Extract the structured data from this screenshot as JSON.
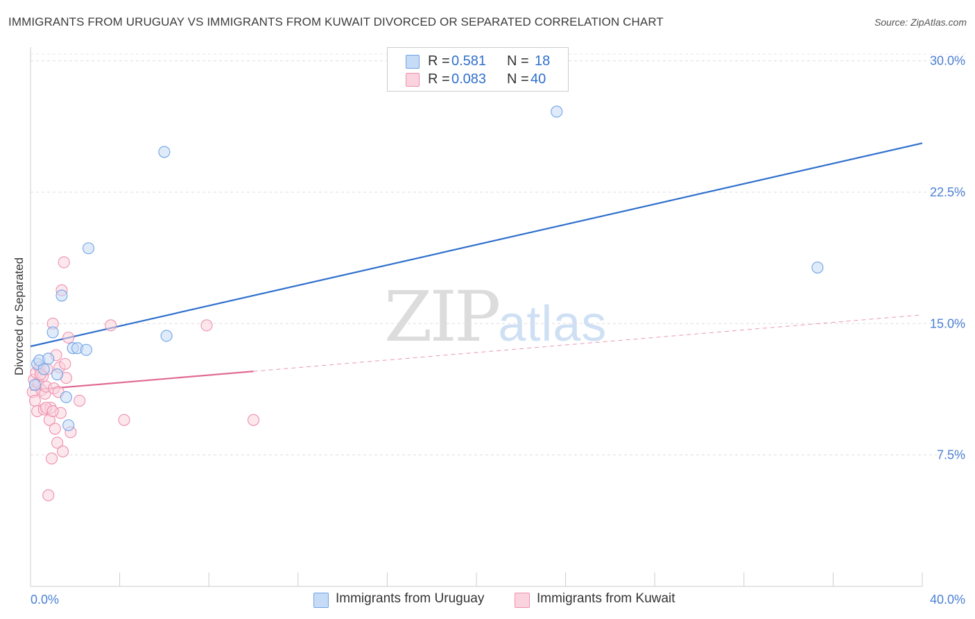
{
  "title": "IMMIGRANTS FROM URUGUAY VS IMMIGRANTS FROM KUWAIT DIVORCED OR SEPARATED CORRELATION CHART",
  "source": "Source: ZipAtlas.com",
  "watermark": {
    "zip": "ZIP",
    "atlas": "atlas"
  },
  "legend": {
    "uruguay": {
      "r_label": "R =",
      "r_value": "0.581",
      "n_label": "N =",
      "n_value": "18",
      "color": "#9dc3f0"
    },
    "kuwait": {
      "r_label": "R =",
      "r_value": "0.083",
      "n_label": "N =",
      "n_value": "40",
      "color": "#f5b4c8"
    }
  },
  "bottom_legend": {
    "uruguay": "Immigrants from Uruguay",
    "kuwait": "Immigrants from Kuwait"
  },
  "chart_data": {
    "type": "scatter",
    "title": "IMMIGRANTS FROM URUGUAY VS IMMIGRANTS FROM KUWAIT DIVORCED OR SEPARATED CORRELATION CHART",
    "xlabel": "",
    "ylabel": "Divorced or Separated",
    "xlim": [
      0,
      40
    ],
    "ylim": [
      0,
      30.5
    ],
    "x_tick_labels": [
      "0.0%",
      "40.0%"
    ],
    "y_ticks": [
      7.5,
      15.0,
      22.5,
      30.0
    ],
    "y_tick_labels": [
      "7.5%",
      "15.0%",
      "22.5%",
      "30.0%"
    ],
    "grid": true,
    "series": [
      {
        "name": "Immigrants from Uruguay",
        "color": "#6fa3e6",
        "fill": "#c6dbf5",
        "line_color": "#2e6fcc",
        "trend": {
          "x0": 0,
          "y0": 13.7,
          "x1": 40,
          "y1": 25.3,
          "dashed_from": null
        },
        "points": [
          [
            0.3,
            12.7
          ],
          [
            0.4,
            12.9
          ],
          [
            0.6,
            12.4
          ],
          [
            0.8,
            13.0
          ],
          [
            1.0,
            14.5
          ],
          [
            1.2,
            12.1
          ],
          [
            1.4,
            16.6
          ],
          [
            1.6,
            10.8
          ],
          [
            1.7,
            9.2
          ],
          [
            1.9,
            13.6
          ],
          [
            2.1,
            13.6
          ],
          [
            2.5,
            13.5
          ],
          [
            2.6,
            19.3
          ],
          [
            6.0,
            24.8
          ],
          [
            6.1,
            14.3
          ],
          [
            23.6,
            27.1
          ],
          [
            35.3,
            18.2
          ],
          [
            0.2,
            11.5
          ]
        ]
      },
      {
        "name": "Immigrants from Kuwait",
        "color": "#ee8fae",
        "fill": "#fad3df",
        "line_color": "#e06a94",
        "trend": {
          "x0": 0,
          "y0": 11.2,
          "x1": 40,
          "y1": 15.5,
          "solid_until": 10.0
        },
        "points": [
          [
            0.1,
            11.1
          ],
          [
            0.15,
            11.8
          ],
          [
            0.2,
            10.6
          ],
          [
            0.25,
            12.2
          ],
          [
            0.3,
            10.0
          ],
          [
            0.35,
            11.6
          ],
          [
            0.4,
            12.5
          ],
          [
            0.5,
            11.2
          ],
          [
            0.55,
            12.0
          ],
          [
            0.6,
            10.1
          ],
          [
            0.65,
            11.0
          ],
          [
            0.7,
            11.4
          ],
          [
            0.75,
            12.4
          ],
          [
            0.8,
            5.2
          ],
          [
            0.85,
            9.5
          ],
          [
            0.9,
            10.2
          ],
          [
            0.95,
            7.3
          ],
          [
            1.0,
            15.0
          ],
          [
            1.05,
            11.3
          ],
          [
            1.1,
            9.0
          ],
          [
            1.15,
            13.2
          ],
          [
            1.2,
            8.2
          ],
          [
            1.25,
            11.1
          ],
          [
            1.3,
            12.5
          ],
          [
            1.35,
            9.9
          ],
          [
            1.4,
            16.9
          ],
          [
            1.45,
            7.7
          ],
          [
            1.5,
            18.5
          ],
          [
            1.55,
            12.7
          ],
          [
            1.6,
            11.9
          ],
          [
            1.7,
            14.2
          ],
          [
            1.8,
            8.8
          ],
          [
            2.2,
            10.6
          ],
          [
            3.6,
            14.9
          ],
          [
            4.2,
            9.5
          ],
          [
            7.9,
            14.9
          ],
          [
            10.0,
            9.5
          ],
          [
            0.45,
            12.1
          ],
          [
            0.7,
            10.2
          ],
          [
            1.0,
            10.0
          ]
        ]
      }
    ]
  }
}
